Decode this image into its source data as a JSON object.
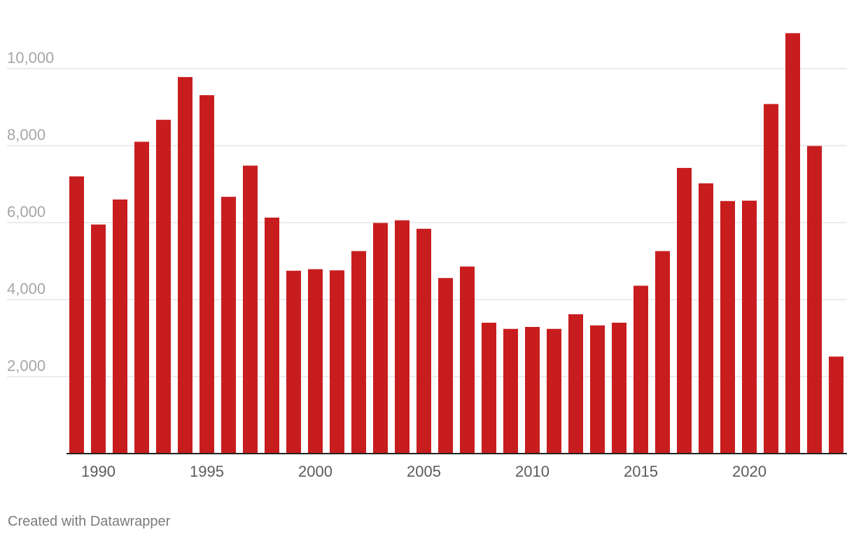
{
  "chart_data": {
    "type": "bar",
    "title": "",
    "xlabel": "",
    "ylabel": "",
    "x": [
      1989,
      1990,
      1991,
      1992,
      1993,
      1994,
      1995,
      1996,
      1997,
      1998,
      1999,
      2000,
      2001,
      2002,
      2003,
      2004,
      2005,
      2006,
      2007,
      2008,
      2009,
      2010,
      2011,
      2012,
      2013,
      2014,
      2015,
      2016,
      2017,
      2018,
      2019,
      2020,
      2021,
      2022,
      2023,
      2024
    ],
    "values": [
      7200,
      5950,
      6600,
      8100,
      8670,
      9780,
      9310,
      6670,
      7480,
      6130,
      4750,
      4790,
      4760,
      5260,
      5990,
      6060,
      5840,
      4560,
      4860,
      3400,
      3240,
      3290,
      3240,
      3620,
      3330,
      3400,
      4360,
      5260,
      7420,
      7020,
      6560,
      6570,
      9080,
      10920,
      7990,
      2520
    ],
    "x_tick_labels": [
      "1990",
      "1995",
      "2000",
      "2005",
      "2010",
      "2015",
      "2020"
    ],
    "y_tick_labels": [
      "2,000",
      "4,000",
      "6,000",
      "8,000",
      "10,000"
    ],
    "y_ticks": [
      2000,
      4000,
      6000,
      8000,
      10000
    ],
    "ylim": [
      0,
      11000
    ],
    "grid": true,
    "bar_color": "#c81d1f"
  },
  "footer": {
    "credit": "Created with Datawrapper"
  }
}
